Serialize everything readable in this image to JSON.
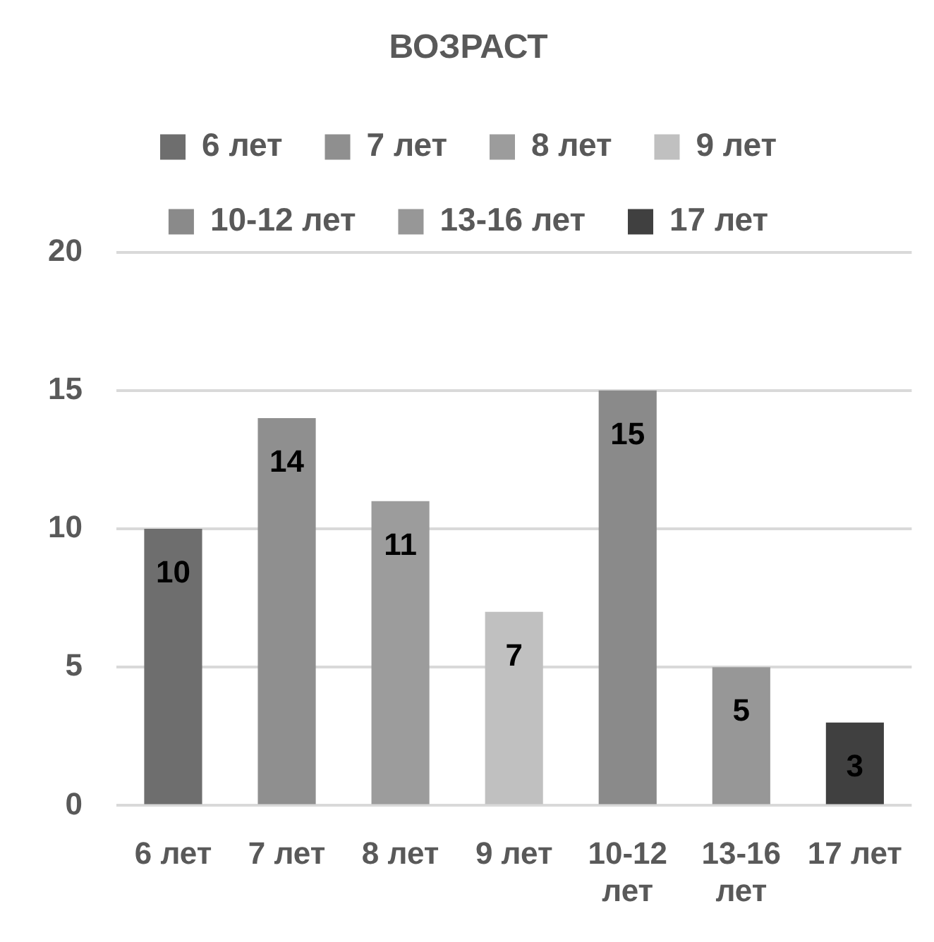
{
  "chart_data": {
    "type": "bar",
    "title": "ВОЗРАСТ",
    "categories": [
      "6 лет",
      "7 лет",
      "8 лет",
      "9 лет",
      "10-12 лет",
      "13-16 лет",
      "17 лет"
    ],
    "series": [
      {
        "name": "6 лет",
        "color": "#6e6e6e",
        "values": [
          10,
          null,
          null,
          null,
          null,
          null,
          null
        ]
      },
      {
        "name": "7 лет",
        "color": "#8f8f8f",
        "values": [
          null,
          14,
          null,
          null,
          null,
          null,
          null
        ]
      },
      {
        "name": "8 лет",
        "color": "#9c9c9c",
        "values": [
          null,
          null,
          11,
          null,
          null,
          null,
          null
        ]
      },
      {
        "name": "9 лет",
        "color": "#c0c0c0",
        "values": [
          null,
          null,
          null,
          7,
          null,
          null,
          null
        ]
      },
      {
        "name": "10-12 лет",
        "color": "#8a8a8a",
        "values": [
          null,
          null,
          null,
          null,
          15,
          null,
          null
        ]
      },
      {
        "name": "13-16 лет",
        "color": "#979797",
        "values": [
          null,
          null,
          null,
          null,
          null,
          5,
          null
        ]
      },
      {
        "name": "17 лет",
        "color": "#404040",
        "values": [
          null,
          null,
          null,
          null,
          null,
          null,
          3
        ]
      }
    ],
    "ylim": [
      0,
      20
    ],
    "yticks": [
      0,
      5,
      10,
      15,
      20
    ],
    "grid": "y",
    "legend": "top",
    "data_labels": true
  }
}
